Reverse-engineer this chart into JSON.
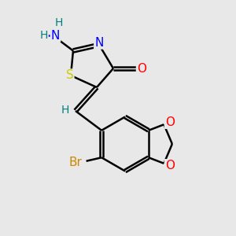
{
  "background_color": "#e8e8e8",
  "bond_color": "#000000",
  "bond_width": 1.8,
  "atom_colors": {
    "N": "#0000ff",
    "S": "#cccc00",
    "O": "#ff0000",
    "Br": "#cc8800",
    "H": "#008080",
    "C": "#000000"
  },
  "font_size": 11
}
